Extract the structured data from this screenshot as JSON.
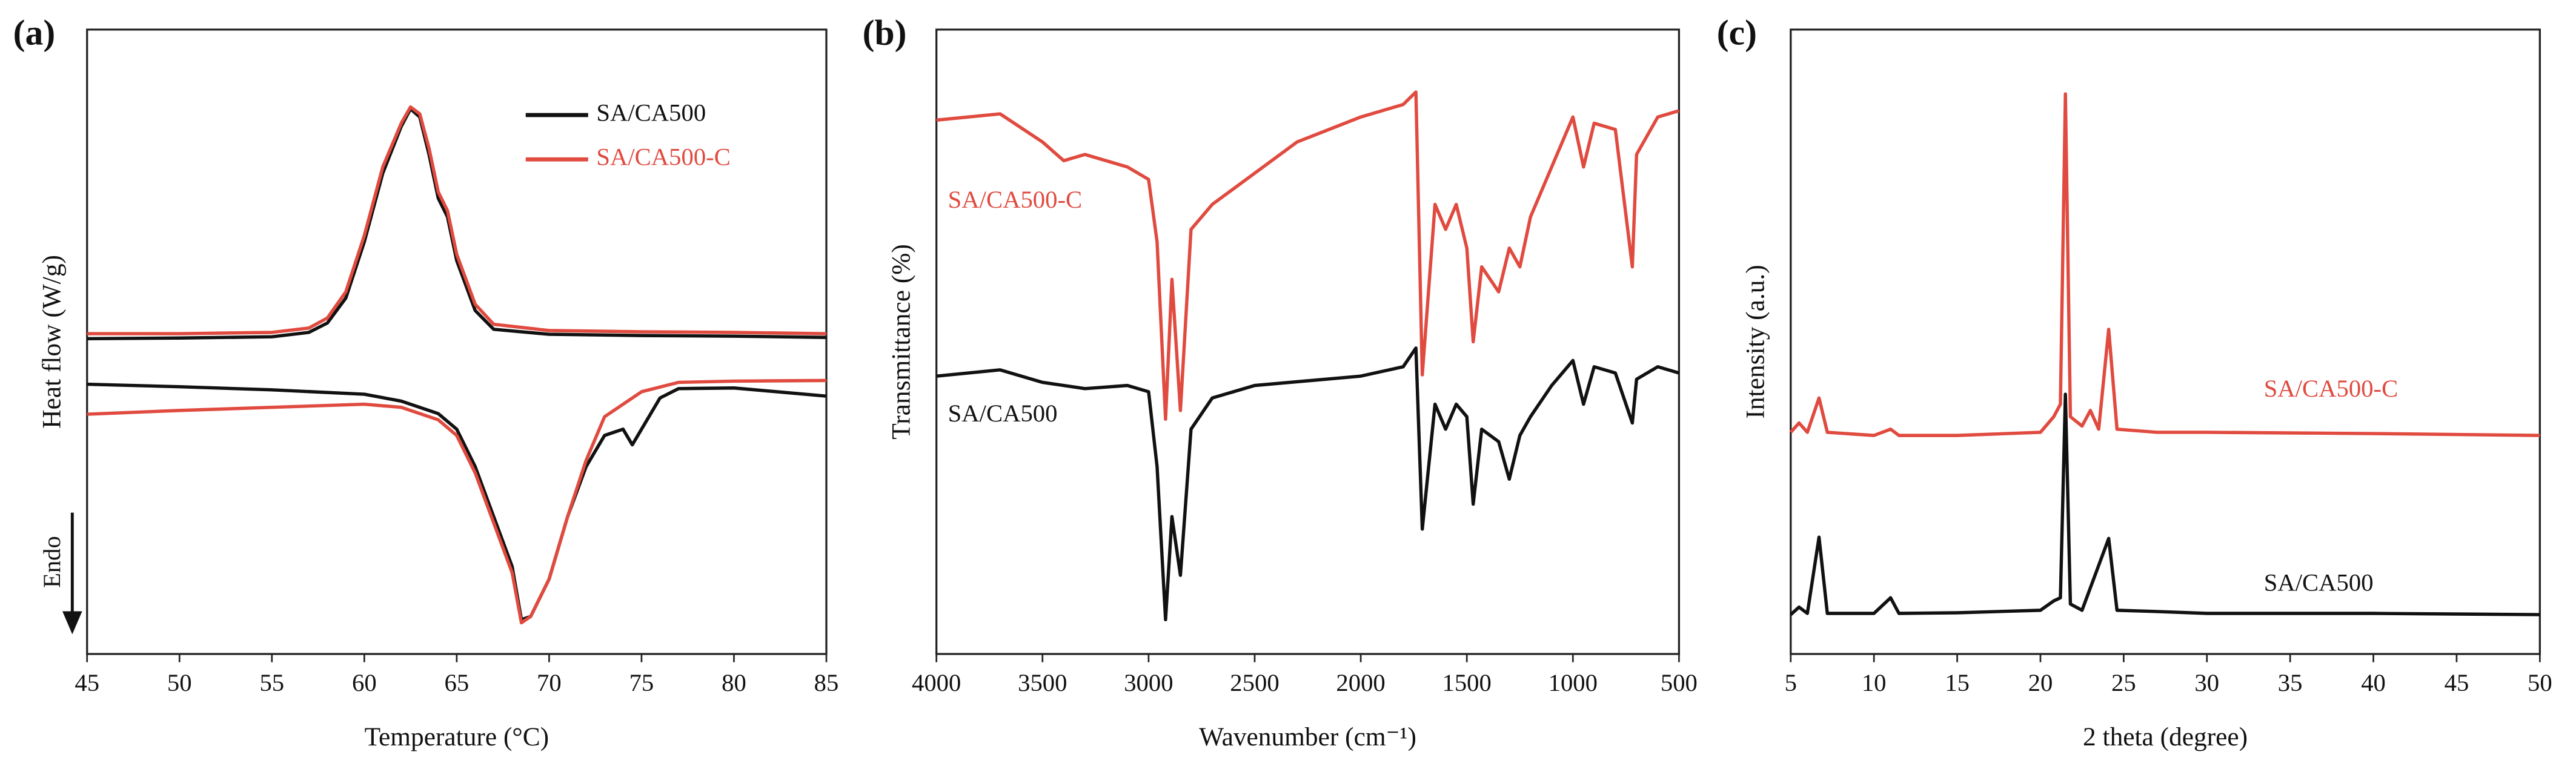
{
  "chart_data": [
    {
      "type": "line",
      "panel_label": "(a)",
      "x_label": "Temperature (°C)",
      "y_label": "Heat flow (W/g)",
      "annotation": "Endo",
      "legend": "upper right",
      "xlim": [
        45,
        85
      ],
      "xticks": [
        45,
        50,
        55,
        60,
        65,
        70,
        75,
        80,
        85
      ],
      "ylim": [
        0,
        100
      ],
      "series": [
        {
          "name": "SA/CA500",
          "color": "#111111",
          "x": [
            45,
            50,
            55,
            57,
            58,
            59,
            60,
            61,
            62,
            62.5,
            63,
            63.5,
            64,
            64.5,
            65,
            66,
            67,
            70,
            75,
            80,
            85,
            null,
            45,
            50,
            55,
            60,
            62,
            64,
            65,
            66,
            67,
            68,
            68.5,
            69,
            70,
            71,
            72,
            73,
            74,
            74.5,
            75,
            76,
            77,
            80,
            85
          ],
          "values": [
            50.5,
            50.6,
            50.8,
            51.5,
            53,
            57,
            66,
            77,
            84.5,
            87.3,
            86,
            80,
            73,
            70,
            63,
            55,
            52,
            51.2,
            51,
            50.9,
            50.7,
            null,
            43.2,
            42.8,
            42.3,
            41.6,
            40.5,
            38.5,
            36,
            30,
            22,
            14,
            5.5,
            6,
            12,
            22,
            30,
            35,
            36,
            33.5,
            36,
            41,
            42.5,
            42.6,
            41.3
          ]
        },
        {
          "name": "SA/CA500-C",
          "color": "#e04a3f",
          "x": [
            45,
            50,
            55,
            57,
            58,
            59,
            60,
            61,
            62,
            62.5,
            63,
            63.5,
            64,
            64.5,
            65,
            66,
            67,
            70,
            75,
            80,
            85,
            null,
            45,
            50,
            55,
            60,
            62,
            64,
            65,
            66,
            67,
            68,
            68.5,
            69,
            70,
            71,
            72,
            73,
            74,
            75,
            77,
            80,
            85
          ],
          "values": [
            51.3,
            51.3,
            51.5,
            52.2,
            53.8,
            58,
            67,
            78,
            85,
            87.6,
            86.5,
            81,
            74,
            71,
            64,
            56,
            52.8,
            51.8,
            51.6,
            51.5,
            51.3,
            null,
            38.4,
            39,
            39.5,
            40,
            39.5,
            37.5,
            35,
            29,
            21,
            13,
            5,
            6,
            12,
            22,
            31,
            38,
            40,
            42,
            43.5,
            43.7,
            43.8
          ]
        }
      ]
    },
    {
      "type": "line",
      "panel_label": "(b)",
      "x_label": "Wavenumber (cm⁻¹)",
      "y_label": "Transmittance (%)",
      "legend": "inline",
      "xlim": [
        4000,
        500
      ],
      "xticks": [
        4000,
        3500,
        3000,
        2500,
        2000,
        1500,
        1000,
        500
      ],
      "ylim": [
        0,
        100
      ],
      "series": [
        {
          "name": "SA/CA500-C",
          "color": "#e04a3f",
          "x": [
            4000,
            3700,
            3500,
            3400,
            3300,
            3100,
            3000,
            2960,
            2920,
            2890,
            2850,
            2800,
            2700,
            2500,
            2300,
            2000,
            1800,
            1740,
            1710,
            1650,
            1600,
            1550,
            1500,
            1470,
            1430,
            1350,
            1300,
            1250,
            1200,
            1100,
            1000,
            950,
            900,
            800,
            720,
            700,
            600,
            500
          ],
          "values": [
            85.5,
            86.5,
            82,
            79,
            80,
            78,
            76,
            66,
            37.6,
            60,
            39,
            68,
            72,
            77,
            82,
            86,
            88,
            90,
            44.7,
            72,
            68,
            72,
            65,
            50,
            62,
            58,
            65,
            62,
            70,
            78,
            86,
            78,
            85,
            84,
            62,
            80,
            86,
            87
          ]
        },
        {
          "name": "SA/CA500",
          "color": "#111111",
          "x": [
            4000,
            3700,
            3500,
            3300,
            3100,
            3000,
            2960,
            2920,
            2890,
            2850,
            2800,
            2700,
            2500,
            2000,
            1800,
            1740,
            1710,
            1650,
            1600,
            1550,
            1500,
            1470,
            1430,
            1350,
            1300,
            1250,
            1200,
            1100,
            1000,
            950,
            900,
            800,
            720,
            700,
            600,
            500
          ],
          "values": [
            44.5,
            45.5,
            43.5,
            42.5,
            43,
            42,
            30,
            5.5,
            22,
            12.6,
            36,
            41,
            43,
            44.5,
            46,
            49,
            20,
            40,
            36,
            40,
            38,
            24,
            36,
            34,
            28,
            35,
            38,
            43,
            47,
            40,
            46,
            45,
            37,
            44,
            46,
            45
          ]
        }
      ]
    },
    {
      "type": "line",
      "panel_label": "(c)",
      "x_label": "2 theta (degree)",
      "y_label": "Intensity (a.u.)",
      "legend": "inline",
      "xlim": [
        5,
        50
      ],
      "xticks": [
        5,
        10,
        15,
        20,
        25,
        30,
        35,
        40,
        45,
        50
      ],
      "ylim": [
        0,
        100
      ],
      "series": [
        {
          "name": "SA/CA500-C",
          "color": "#e04a3f",
          "x": [
            5,
            5.5,
            6,
            6.7,
            7.2,
            10,
            11,
            11.5,
            15,
            20,
            20.8,
            21.2,
            21.5,
            21.8,
            22.5,
            23,
            23.5,
            24.1,
            24.6,
            27,
            30,
            40,
            50
          ],
          "values": [
            35.5,
            37,
            35.5,
            41,
            35.5,
            35,
            36,
            35,
            35,
            35.5,
            38,
            40,
            89.7,
            38,
            36.5,
            39,
            36,
            52,
            36,
            35.5,
            35.5,
            35.3,
            35
          ]
        },
        {
          "name": "SA/CA500",
          "color": "#111111",
          "x": [
            5,
            5.5,
            6,
            6.7,
            7.2,
            10,
            11,
            11.5,
            15,
            20,
            20.8,
            21.2,
            21.5,
            21.8,
            22.5,
            24.1,
            24.6,
            27,
            30,
            40,
            50
          ],
          "values": [
            6.3,
            7.5,
            6.5,
            18.7,
            6.5,
            6.5,
            9,
            6.5,
            6.6,
            7,
            8.5,
            9,
            41.6,
            8,
            7,
            18.5,
            7,
            6.8,
            6.5,
            6.5,
            6.3
          ]
        }
      ]
    }
  ]
}
